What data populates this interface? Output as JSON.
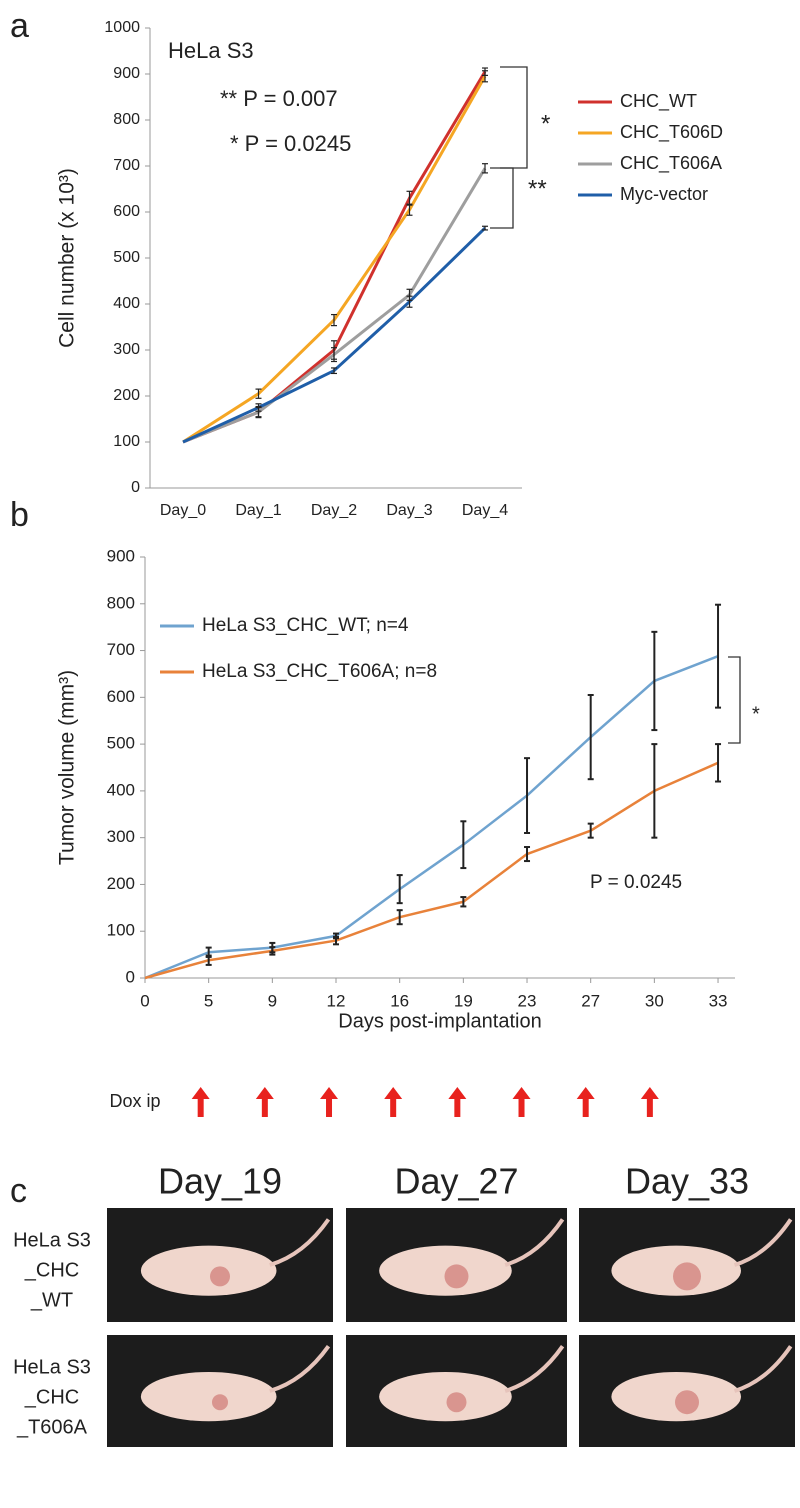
{
  "panel_labels": [
    "a",
    "b",
    "c"
  ],
  "chart_data": [
    {
      "type": "line",
      "title": "HeLa S3",
      "y_label": "Cell number (x 10³)",
      "annotations": [
        "** P = 0.007",
        "* P = 0.0245",
        "*",
        "**"
      ],
      "categories": [
        "Day_0",
        "Day_1",
        "Day_2",
        "Day_3",
        "Day_4"
      ],
      "series": [
        {
          "name": "CHC_WT",
          "color": "#d0312d",
          "values": [
            100,
            165,
            300,
            630,
            905
          ],
          "errors": [
            0,
            10,
            20,
            15,
            8
          ]
        },
        {
          "name": "CHC_T606D",
          "color": "#f5a623",
          "values": [
            100,
            205,
            365,
            605,
            895
          ],
          "errors": [
            0,
            10,
            12,
            12,
            12
          ]
        },
        {
          "name": "CHC_T606A",
          "color": "#9e9e9e",
          "values": [
            100,
            165,
            290,
            420,
            695
          ],
          "errors": [
            0,
            12,
            15,
            12,
            10
          ]
        },
        {
          "name": "Myc-vector",
          "color": "#1f5ea8",
          "values": [
            100,
            175,
            255,
            405,
            565
          ],
          "errors": [
            0,
            8,
            6,
            12,
            4
          ]
        }
      ],
      "ylim": [
        0,
        1000
      ],
      "yticks": [
        0,
        100,
        200,
        300,
        400,
        500,
        600,
        700,
        800,
        900,
        1000
      ],
      "legend": "outside-right"
    },
    {
      "type": "line",
      "y_label": "Tumor volume (mm³)",
      "x_label": "Days  post-implantation",
      "annotations": [
        "P = 0.0245",
        "*"
      ],
      "dox_label": "Dox ip",
      "categories": [
        "0",
        "5",
        "9",
        "12",
        "16",
        "19",
        "23",
        "27",
        "30",
        "33"
      ],
      "series": [
        {
          "name": "HeLa S3_CHC_WT; n=4",
          "color": "#6fa3cf",
          "values": [
            0,
            55,
            65,
            90,
            190,
            285,
            390,
            515,
            635,
            688
          ],
          "errors": [
            0,
            10,
            10,
            5,
            30,
            50,
            80,
            90,
            105,
            110
          ]
        },
        {
          "name": "HeLa S3_CHC_T606A; n=8",
          "color": "#e8823a",
          "values": [
            0,
            38,
            58,
            80,
            130,
            163,
            265,
            315,
            400,
            460
          ],
          "errors": [
            0,
            10,
            8,
            8,
            15,
            10,
            15,
            15,
            100,
            40
          ]
        }
      ],
      "ylim": [
        0,
        900
      ],
      "yticks": [
        0,
        100,
        200,
        300,
        400,
        500,
        600,
        700,
        800,
        900
      ],
      "legend": "upper-left"
    }
  ],
  "photos": {
    "columns": [
      "Day_19",
      "Day_27",
      "Day_33"
    ],
    "rows": [
      [
        "HeLa S3",
        "_CHC",
        "_WT"
      ],
      [
        "HeLa S3",
        "_CHC",
        "_T606A"
      ]
    ]
  }
}
